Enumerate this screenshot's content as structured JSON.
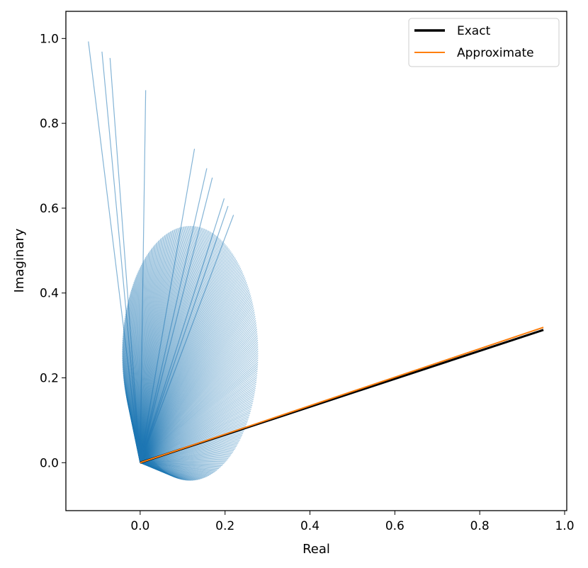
{
  "chart_data": {
    "type": "line",
    "title": "",
    "xlabel": "Real",
    "ylabel": "Imaginary",
    "xlim": [
      -0.175,
      1.005
    ],
    "ylim": [
      -0.113,
      1.064
    ],
    "xticks": [
      0.0,
      0.2,
      0.4,
      0.6,
      0.8,
      1.0
    ],
    "xtick_labels": [
      "0.0",
      "0.2",
      "0.4",
      "0.6",
      "0.8",
      "1.0"
    ],
    "yticks": [
      0.0,
      0.2,
      0.4,
      0.6,
      0.8,
      1.0
    ],
    "ytick_labels": [
      "0.0",
      "0.2",
      "0.4",
      "0.6",
      "0.8",
      "1.0"
    ],
    "grid": false,
    "legend_position": "top-right",
    "series": [
      {
        "name": "Exact",
        "color": "#000000",
        "x": [
          0.0,
          0.95
        ],
        "y": [
          0.0,
          0.313
        ]
      },
      {
        "name": "Approximate",
        "color": "#ff7f0e",
        "x": [
          0.0,
          0.95
        ],
        "y": [
          0.0,
          0.319
        ]
      }
    ],
    "spokes": {
      "color": "#1f77b4",
      "origin": [
        0.0,
        0.0
      ],
      "outliers": [
        [
          -0.122,
          0.993
        ],
        [
          -0.09,
          0.969
        ],
        [
          -0.071,
          0.954
        ],
        [
          0.013,
          0.878
        ],
        [
          0.128,
          0.74
        ],
        [
          0.157,
          0.694
        ],
        [
          0.17,
          0.672
        ],
        [
          0.198,
          0.623
        ],
        [
          0.207,
          0.605
        ],
        [
          0.22,
          0.584
        ]
      ],
      "envelope": {
        "center": [
          0.118,
          0.258
        ],
        "semi_axis_x": 0.16,
        "semi_axis_y": 0.3
      }
    }
  }
}
